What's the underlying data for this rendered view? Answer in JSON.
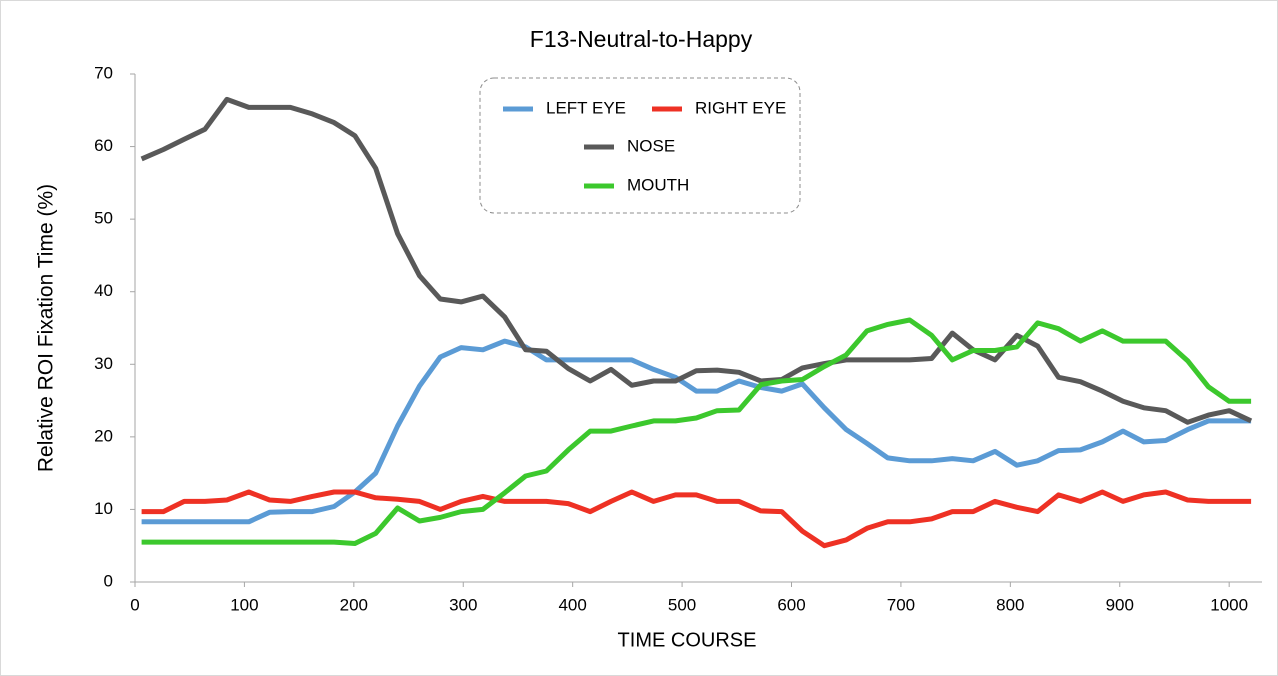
{
  "chart_data": {
    "type": "line",
    "title": "F13-Neutral-to-Happy",
    "x_label": "TIME  COURSE",
    "y_label": "Relative  ROI  Fixation  Time  (%)",
    "x": [
      6,
      26,
      45,
      64,
      84,
      104,
      123,
      142,
      162,
      182,
      201,
      220,
      240,
      260,
      279,
      298,
      318,
      338,
      357,
      376,
      396,
      416,
      435,
      454,
      474,
      494,
      513,
      532,
      552,
      572,
      591,
      610,
      630,
      650,
      669,
      688,
      708,
      728,
      747,
      766,
      786,
      806,
      825,
      844,
      864,
      884,
      903,
      922,
      942,
      962,
      981,
      1000,
      1020
    ],
    "series": [
      {
        "name": "LEFT EYE",
        "color": "#5b9bd5",
        "values": [
          8.3,
          8.3,
          8.3,
          8.3,
          8.3,
          8.3,
          9.6,
          9.7,
          9.7,
          10.4,
          12.4,
          15,
          21.5,
          27,
          31,
          32.3,
          32,
          33.2,
          32.4,
          30.6,
          30.6,
          30.6,
          30.6,
          30.6,
          29.3,
          28.2,
          26.3,
          26.3,
          27.7,
          26.8,
          26.3,
          27.3,
          24,
          21,
          19.1,
          17.1,
          16.7,
          16.7,
          17,
          16.7,
          18,
          16.1,
          16.7,
          18.1,
          18.2,
          19.3,
          20.8,
          19.3,
          19.5,
          21,
          22.2,
          22.2,
          22.2
        ]
      },
      {
        "name": "RIGHT EYE",
        "color": "#ee3124",
        "values": [
          9.7,
          9.7,
          11.1,
          11.1,
          11.3,
          12.4,
          11.3,
          11.1,
          11.8,
          12.4,
          12.4,
          11.6,
          11.4,
          11.1,
          10,
          11.1,
          11.8,
          11.1,
          11.1,
          11.1,
          10.8,
          9.7,
          11.1,
          12.4,
          11.1,
          12,
          12,
          11.1,
          11.1,
          9.8,
          9.7,
          7,
          5,
          5.8,
          7.4,
          8.3,
          8.3,
          8.7,
          9.7,
          9.7,
          11.1,
          10.3,
          9.7,
          12,
          11.1,
          12.4,
          11.1,
          12,
          12.4,
          11.3,
          11.1,
          11.1,
          11.1
        ]
      },
      {
        "name": "NOSE",
        "color": "#595959",
        "values": [
          58.3,
          59.6,
          61,
          62.4,
          66.5,
          65.4,
          65.4,
          65.4,
          64.5,
          63.3,
          61.5,
          57,
          48,
          42.2,
          39,
          38.6,
          39.4,
          36.5,
          32,
          31.8,
          29.4,
          27.7,
          29.3,
          27.1,
          27.7,
          27.7,
          29.1,
          29.2,
          28.9,
          27.7,
          27.9,
          29.5,
          30.1,
          30.6,
          30.6,
          30.6,
          30.6,
          30.8,
          34.3,
          32,
          30.6,
          34,
          32.5,
          28.2,
          27.6,
          26.3,
          24.9,
          24,
          23.6,
          22,
          23,
          23.6,
          22.2
        ]
      },
      {
        "name": "MOUTH",
        "color": "#3cc82d",
        "values": [
          5.5,
          5.5,
          5.5,
          5.5,
          5.5,
          5.5,
          5.5,
          5.5,
          5.5,
          5.5,
          5.3,
          6.7,
          10.2,
          8.4,
          8.9,
          9.7,
          10,
          12.3,
          14.6,
          15.3,
          18.2,
          20.8,
          20.8,
          21.5,
          22.2,
          22.2,
          22.6,
          23.6,
          23.7,
          27.2,
          27.7,
          27.9,
          29.7,
          31.3,
          34.6,
          35.5,
          36.1,
          34,
          30.6,
          31.9,
          31.9,
          32.4,
          35.7,
          34.9,
          33.2,
          34.6,
          33.2,
          33.2,
          33.2,
          30.5,
          26.9,
          24.9,
          24.9
        ]
      }
    ],
    "xlim": [
      0,
      1030
    ],
    "xticks": [
      0,
      100,
      200,
      300,
      400,
      500,
      600,
      700,
      800,
      900,
      1000
    ],
    "ylim": [
      0,
      70
    ],
    "yticks": [
      0,
      10,
      20,
      30,
      40,
      50,
      60,
      70
    ],
    "legend": "top-center"
  }
}
